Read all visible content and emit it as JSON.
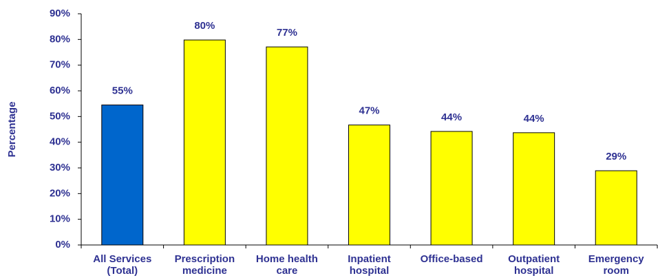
{
  "chart_data": {
    "type": "bar",
    "y_label": "Percentage",
    "categories": [
      [
        "All Services",
        "(Total)"
      ],
      [
        "Prescription",
        "medicine"
      ],
      [
        "Home health",
        "care"
      ],
      [
        "Inpatient",
        "hospital"
      ],
      [
        "Office-based"
      ],
      [
        "Outpatient",
        "hospital"
      ],
      [
        "Emergency",
        "room"
      ]
    ],
    "values": [
      54.5,
      79.8,
      77.1,
      46.7,
      44.2,
      43.7,
      28.9
    ],
    "value_labels": [
      "55%",
      "80%",
      "77%",
      "47%",
      "44%",
      "44%",
      "29%"
    ],
    "colors": [
      "#0066cc",
      "#ffff00",
      "#ffff00",
      "#ffff00",
      "#ffff00",
      "#ffff00",
      "#ffff00"
    ],
    "ylim": [
      0,
      90
    ],
    "yticks": [
      {
        "value": 0,
        "label": "0%"
      },
      {
        "value": 10,
        "label": "10%"
      },
      {
        "value": 20,
        "label": "20%"
      },
      {
        "value": 30,
        "label": "30%"
      },
      {
        "value": 40,
        "label": "40%"
      },
      {
        "value": 50,
        "label": "50%"
      },
      {
        "value": 60,
        "label": "60%"
      },
      {
        "value": 70,
        "label": "70%"
      },
      {
        "value": 80,
        "label": "80%"
      },
      {
        "value": 90,
        "label": "90%"
      }
    ],
    "grid": false
  }
}
